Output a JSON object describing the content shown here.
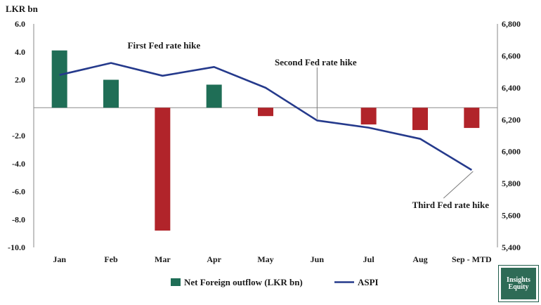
{
  "chart_data": {
    "type": "bar+line",
    "categories": [
      "Jan",
      "Feb",
      "Mar",
      "Apr",
      "May",
      "Jun",
      "Jul",
      "Aug",
      "Sep - MTD"
    ],
    "series": [
      {
        "name": "Net Foreign outflow (LKR bn)",
        "type": "bar",
        "axis": "left",
        "values": [
          4.1,
          2.0,
          -8.8,
          1.65,
          -0.6,
          null,
          -1.2,
          -1.6,
          -1.45
        ]
      },
      {
        "name": "ASPI",
        "type": "line",
        "axis": "right",
        "values": [
          6480,
          6555,
          6475,
          6530,
          6400,
          6195,
          6150,
          6080,
          5885
        ]
      }
    ],
    "left_axis": {
      "label": "LKR bn",
      "ylim": [
        -10,
        6
      ],
      "ticks": [
        "6.0",
        "4.0",
        "2.0",
        "-2.0",
        "-4.0",
        "-6.0",
        "-8.0",
        "-10.0"
      ]
    },
    "right_axis": {
      "ylim": [
        5400,
        6800
      ],
      "ticks": [
        "6,800",
        "6,600",
        "6,400",
        "6,200",
        "6,000",
        "5,800",
        "5,600",
        "5,400"
      ]
    },
    "annotations": [
      {
        "text": "First Fed rate hike",
        "at": "Mar"
      },
      {
        "text": "Second Fed rate hike",
        "at": "Jun"
      },
      {
        "text": "Third Fed rate hike",
        "at": "Sep - MTD"
      }
    ],
    "colors": {
      "positive_bar": "#1f6e56",
      "negative_bar": "#b1242a",
      "line": "#253a8c"
    },
    "legend_position": "bottom",
    "grid": false
  },
  "logo": {
    "line1": "Insights",
    "line2": "Equity"
  }
}
